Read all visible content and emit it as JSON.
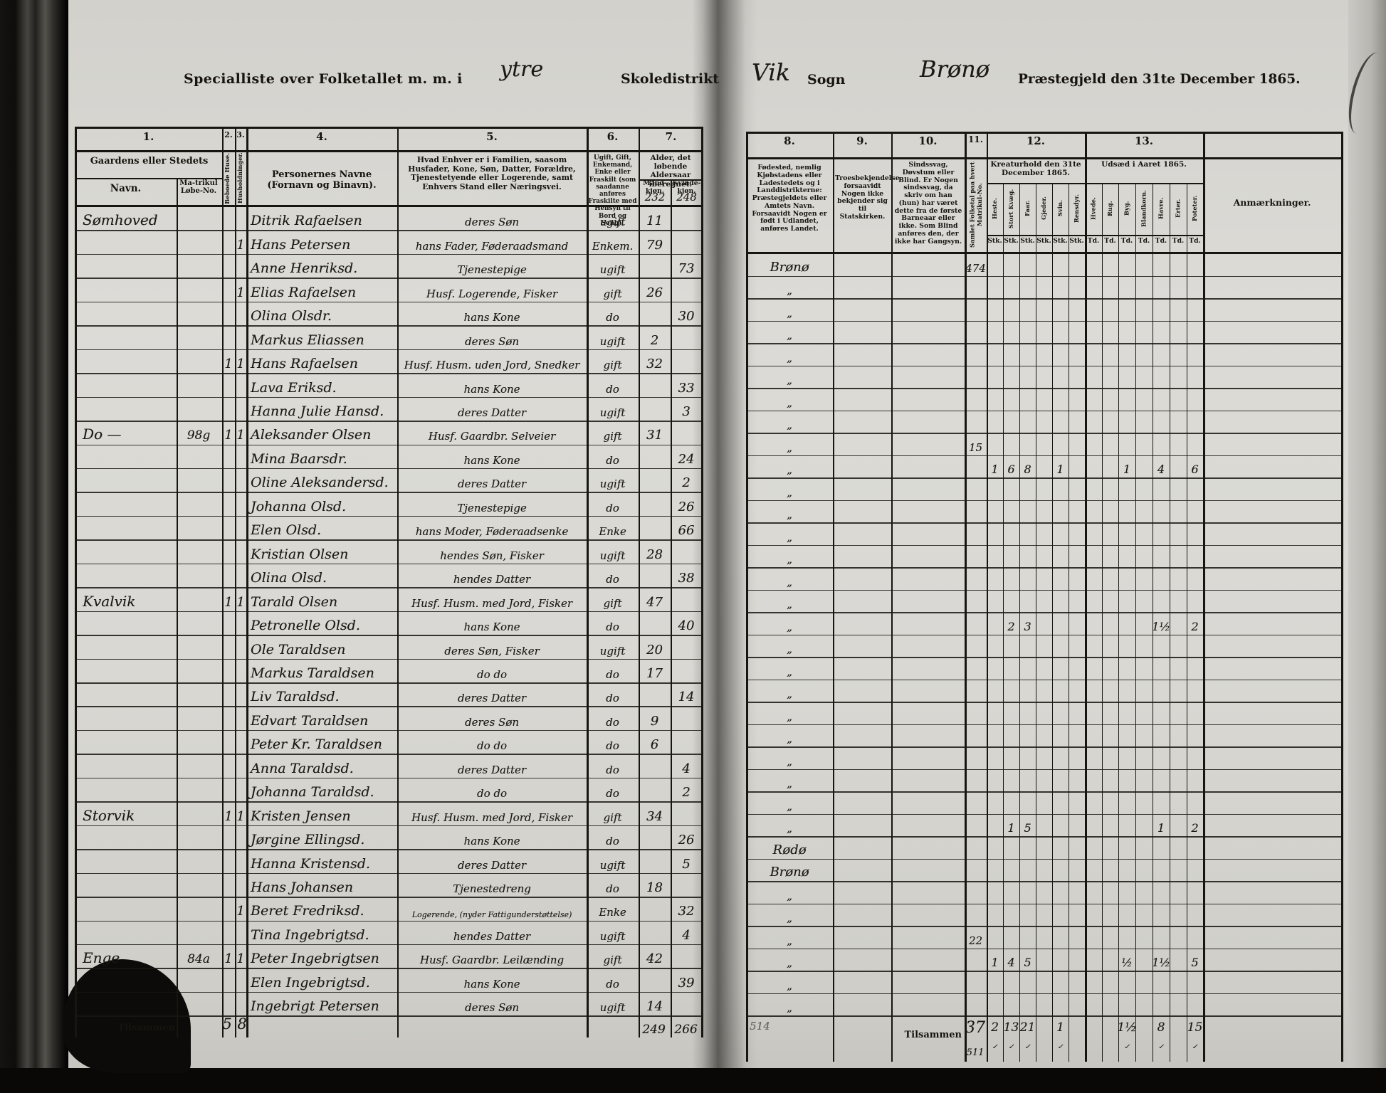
{
  "page_header": {
    "left_title_prefix": "Specialliste over Folketallet m. m. i",
    "district_handwritten": "ytre",
    "left_title_suffix": "Skoledistrikt",
    "parish_handwritten": "Vik",
    "sogn_label": "Sogn",
    "prestegjeld_handwritten": "Brønø",
    "right_title_suffix": "Præstegjeld den 31te December 1865."
  },
  "left_table": {
    "column_numbers": [
      "1.",
      "2.",
      "3.",
      "4.",
      "5.",
      "6.",
      "7."
    ],
    "headers": {
      "farm_group": "Gaardens eller Stedets",
      "farm_name": "Navn.",
      "matrikul": "Ma-trikul Løbe-No.",
      "inhabited_houses": "Beboede Huse.",
      "households": "Husholdninger.",
      "person_names": "Personernes Navne (Fornavn og Binavn).",
      "position": "Hvad Enhver er i Familien, saasom Husfader, Kone, Søn, Datter, Forældre, Tjenestetyende eller Logerende, samt Enhvers Stand eller Næringsvei.",
      "status": "Ugift, Gift, Enkemand, Enke eller Fraskilt (som saadanne anføres Fraskilte med Hensyn til Bord og Seng).",
      "age": "Alder, det løbende Aldersaar iberegnet.",
      "male": "Mand-kjøn.",
      "female": "Kvinde-kjøn.",
      "male_carry": "232",
      "female_carry": "248"
    },
    "footer": {
      "label": "Tilsammen",
      "houses_total": "5",
      "households_total": "8",
      "male_total": "249",
      "female_total": "266"
    }
  },
  "right_table": {
    "column_numbers": [
      "8.",
      "9.",
      "10.",
      "11.",
      "12.",
      "13."
    ],
    "headers": {
      "birthplace": "Fødested, nemlig Kjøbstadens eller Ladestedets og i Landdistrikterne: Præstegjeldets eller Amtets Navn. Forsaavidt Nogen er født i Udlandet, anføres Landet.",
      "faith": "Troesbekjendelse, forsaavidt Nogen ikke bekjender sig til Statskirken.",
      "disabilities": "Sindssvag, Døvstum eller Blind. Er Nogen sindssvag, da skriv om han (hun) har været dette fra de første Barneaar eller ikke. Som Blind anføres den, der ikke har Gangsyn.",
      "population": "Samlet Folketal paa hvert Matrikul-No.",
      "livestock_title": "Kreaturhold den 31te December 1865.",
      "livestock_cols": [
        "Heste.",
        "Stort Kvæg.",
        "Faar.",
        "Gjeder.",
        "Svin.",
        "Rensdyr."
      ],
      "livestock_unit": "Stk.",
      "sowing_title": "Udsæd i Aaret 1865.",
      "sowing_cols": [
        "Hvede.",
        "Rug.",
        "Byg.",
        "Blandkorn.",
        "Havre.",
        "Erter.",
        "Poteter."
      ],
      "sowing_unit": "Td.",
      "remarks": "Anmærkninger."
    },
    "footer": {
      "faint_number": "514",
      "label": "Tilsammen",
      "population_total": "37",
      "population_running": "511",
      "livestock_totals": [
        "2",
        "13",
        "21",
        "",
        "1",
        ""
      ],
      "sowing_totals": [
        "",
        "",
        "1½",
        "",
        "8",
        "",
        "15"
      ],
      "checkmark": "✓"
    }
  },
  "rows": [
    {
      "farm": "Sømhoved",
      "matrikul": "",
      "house": "",
      "household": "",
      "name": "Ditrik Rafaelsen",
      "position": "deres Søn",
      "status": "ugift",
      "male_age": "11",
      "female_age": "",
      "birthplace": "Brønø",
      "population": "474",
      "livestock": [
        "",
        "",
        "",
        "",
        "",
        ""
      ],
      "sowing": [
        "",
        "",
        "",
        "",
        "",
        "",
        ""
      ]
    },
    {
      "farm": "",
      "matrikul": "",
      "house": "",
      "household": "1",
      "name": "Hans Petersen",
      "position": "hans Fader, Føderaadsmand",
      "status": "Enkem.",
      "male_age": "79",
      "female_age": "",
      "birthplace": "„",
      "population": "",
      "livestock": [
        "",
        "",
        "",
        "",
        "",
        ""
      ],
      "sowing": [
        "",
        "",
        "",
        "",
        "",
        "",
        ""
      ]
    },
    {
      "farm": "",
      "matrikul": "",
      "house": "",
      "household": "",
      "name": "Anne Henriksd.",
      "position": "Tjenestepige",
      "status": "ugift",
      "male_age": "",
      "female_age": "73",
      "birthplace": "„",
      "population": "",
      "livestock": [
        "",
        "",
        "",
        "",
        "",
        ""
      ],
      "sowing": [
        "",
        "",
        "",
        "",
        "",
        "",
        ""
      ]
    },
    {
      "farm": "",
      "matrikul": "",
      "house": "",
      "household": "1",
      "name": "Elias Rafaelsen",
      "position": "Husf. Logerende, Fisker",
      "status": "gift",
      "male_age": "26",
      "female_age": "",
      "birthplace": "„",
      "population": "",
      "livestock": [
        "",
        "",
        "",
        "",
        "",
        ""
      ],
      "sowing": [
        "",
        "",
        "",
        "",
        "",
        "",
        ""
      ]
    },
    {
      "farm": "",
      "matrikul": "",
      "house": "",
      "household": "",
      "name": "Olina Olsdr.",
      "position": "hans Kone",
      "status": "do",
      "male_age": "",
      "female_age": "30",
      "birthplace": "„",
      "population": "",
      "livestock": [
        "",
        "",
        "",
        "",
        "",
        ""
      ],
      "sowing": [
        "",
        "",
        "",
        "",
        "",
        "",
        ""
      ]
    },
    {
      "farm": "",
      "matrikul": "",
      "house": "",
      "household": "",
      "name": "Markus Eliassen",
      "position": "deres Søn",
      "status": "ugift",
      "male_age": "2",
      "female_age": "",
      "birthplace": "„",
      "population": "",
      "livestock": [
        "",
        "",
        "",
        "",
        "",
        ""
      ],
      "sowing": [
        "",
        "",
        "",
        "",
        "",
        "",
        ""
      ]
    },
    {
      "farm": "",
      "matrikul": "",
      "house": "1",
      "household": "1",
      "name": "Hans Rafaelsen",
      "position": "Husf. Husm. uden Jord, Snedker",
      "status": "gift",
      "male_age": "32",
      "female_age": "",
      "birthplace": "„",
      "population": "",
      "livestock": [
        "",
        "",
        "",
        "",
        "",
        ""
      ],
      "sowing": [
        "",
        "",
        "",
        "",
        "",
        "",
        ""
      ]
    },
    {
      "farm": "",
      "matrikul": "",
      "house": "",
      "household": "",
      "name": "Lava Eriksd.",
      "position": "hans Kone",
      "status": "do",
      "male_age": "",
      "female_age": "33",
      "birthplace": "„",
      "population": "",
      "livestock": [
        "",
        "",
        "",
        "",
        "",
        ""
      ],
      "sowing": [
        "",
        "",
        "",
        "",
        "",
        "",
        ""
      ]
    },
    {
      "farm": "",
      "matrikul": "",
      "house": "",
      "household": "",
      "name": "Hanna Julie Hansd.",
      "position": "deres Datter",
      "status": "ugift",
      "male_age": "",
      "female_age": "3",
      "birthplace": "„",
      "population": "15",
      "livestock": [
        "",
        "",
        "",
        "",
        "",
        ""
      ],
      "sowing": [
        "",
        "",
        "",
        "",
        "",
        "",
        ""
      ]
    },
    {
      "farm": "Do —",
      "matrikul": "98g",
      "house": "1",
      "household": "1",
      "name": "Aleksander Olsen",
      "position": "Husf. Gaardbr. Selveier",
      "status": "gift",
      "male_age": "31",
      "female_age": "",
      "birthplace": "„",
      "population": "",
      "livestock": [
        "1",
        "6",
        "8",
        "",
        "1",
        ""
      ],
      "sowing": [
        "",
        "",
        "1",
        "",
        "4",
        "",
        "6"
      ]
    },
    {
      "farm": "",
      "matrikul": "",
      "house": "",
      "household": "",
      "name": "Mina Baarsdr.",
      "position": "hans Kone",
      "status": "do",
      "male_age": "",
      "female_age": "24",
      "birthplace": "„",
      "population": "",
      "livestock": [
        "",
        "",
        "",
        "",
        "",
        ""
      ],
      "sowing": [
        "",
        "",
        "",
        "",
        "",
        "",
        ""
      ]
    },
    {
      "farm": "",
      "matrikul": "",
      "house": "",
      "household": "",
      "name": "Oline Aleksandersd.",
      "position": "deres Datter",
      "status": "ugift",
      "male_age": "",
      "female_age": "2",
      "birthplace": "„",
      "population": "",
      "livestock": [
        "",
        "",
        "",
        "",
        "",
        ""
      ],
      "sowing": [
        "",
        "",
        "",
        "",
        "",
        "",
        ""
      ]
    },
    {
      "farm": "",
      "matrikul": "",
      "house": "",
      "household": "",
      "name": "Johanna Olsd.",
      "position": "Tjenestepige",
      "status": "do",
      "male_age": "",
      "female_age": "26",
      "birthplace": "„",
      "population": "",
      "livestock": [
        "",
        "",
        "",
        "",
        "",
        ""
      ],
      "sowing": [
        "",
        "",
        "",
        "",
        "",
        "",
        ""
      ]
    },
    {
      "farm": "",
      "matrikul": "",
      "house": "",
      "household": "",
      "name": "Elen Olsd.",
      "position": "hans Moder, Føderaadsenke",
      "status": "Enke",
      "male_age": "",
      "female_age": "66",
      "birthplace": "„",
      "population": "",
      "livestock": [
        "",
        "",
        "",
        "",
        "",
        ""
      ],
      "sowing": [
        "",
        "",
        "",
        "",
        "",
        "",
        ""
      ]
    },
    {
      "farm": "",
      "matrikul": "",
      "house": "",
      "household": "",
      "name": "Kristian Olsen",
      "position": "hendes Søn, Fisker",
      "status": "ugift",
      "male_age": "28",
      "female_age": "",
      "birthplace": "„",
      "population": "",
      "livestock": [
        "",
        "",
        "",
        "",
        "",
        ""
      ],
      "sowing": [
        "",
        "",
        "",
        "",
        "",
        "",
        ""
      ]
    },
    {
      "farm": "",
      "matrikul": "",
      "house": "",
      "household": "",
      "name": "Olina Olsd.",
      "position": "hendes Datter",
      "status": "do",
      "male_age": "",
      "female_age": "38",
      "birthplace": "„",
      "population": "",
      "livestock": [
        "",
        "",
        "",
        "",
        "",
        ""
      ],
      "sowing": [
        "",
        "",
        "",
        "",
        "",
        "",
        ""
      ]
    },
    {
      "farm": "Kvalvik",
      "matrikul": "",
      "house": "1",
      "household": "1",
      "name": "Tarald Olsen",
      "position": "Husf. Husm. med Jord, Fisker",
      "status": "gift",
      "male_age": "47",
      "female_age": "",
      "birthplace": "„",
      "population": "",
      "livestock": [
        "",
        "2",
        "3",
        "",
        "",
        ""
      ],
      "sowing": [
        "",
        "",
        "",
        "",
        "1½",
        "",
        "2"
      ]
    },
    {
      "farm": "",
      "matrikul": "",
      "house": "",
      "household": "",
      "name": "Petronelle Olsd.",
      "position": "hans Kone",
      "status": "do",
      "male_age": "",
      "female_age": "40",
      "birthplace": "„",
      "population": "",
      "livestock": [
        "",
        "",
        "",
        "",
        "",
        ""
      ],
      "sowing": [
        "",
        "",
        "",
        "",
        "",
        "",
        ""
      ]
    },
    {
      "farm": "",
      "matrikul": "",
      "house": "",
      "household": "",
      "name": "Ole Taraldsen",
      "position": "deres Søn, Fisker",
      "status": "ugift",
      "male_age": "20",
      "female_age": "",
      "birthplace": "„",
      "population": "",
      "livestock": [
        "",
        "",
        "",
        "",
        "",
        ""
      ],
      "sowing": [
        "",
        "",
        "",
        "",
        "",
        "",
        ""
      ]
    },
    {
      "farm": "",
      "matrikul": "",
      "house": "",
      "household": "",
      "name": "Markus Taraldsen",
      "position": "do do",
      "status": "do",
      "male_age": "17",
      "female_age": "",
      "birthplace": "„",
      "population": "",
      "livestock": [
        "",
        "",
        "",
        "",
        "",
        ""
      ],
      "sowing": [
        "",
        "",
        "",
        "",
        "",
        "",
        ""
      ]
    },
    {
      "farm": "",
      "matrikul": "",
      "house": "",
      "household": "",
      "name": "Liv Taraldsd.",
      "position": "deres Datter",
      "status": "do",
      "male_age": "",
      "female_age": "14",
      "birthplace": "„",
      "population": "",
      "livestock": [
        "",
        "",
        "",
        "",
        "",
        ""
      ],
      "sowing": [
        "",
        "",
        "",
        "",
        "",
        "",
        ""
      ]
    },
    {
      "farm": "",
      "matrikul": "",
      "house": "",
      "household": "",
      "name": "Edvart Taraldsen",
      "position": "deres Søn",
      "status": "do",
      "male_age": "9",
      "female_age": "",
      "birthplace": "„",
      "population": "",
      "livestock": [
        "",
        "",
        "",
        "",
        "",
        ""
      ],
      "sowing": [
        "",
        "",
        "",
        "",
        "",
        "",
        ""
      ]
    },
    {
      "farm": "",
      "matrikul": "",
      "house": "",
      "household": "",
      "name": "Peter Kr. Taraldsen",
      "position": "do do",
      "status": "do",
      "male_age": "6",
      "female_age": "",
      "birthplace": "„",
      "population": "",
      "livestock": [
        "",
        "",
        "",
        "",
        "",
        ""
      ],
      "sowing": [
        "",
        "",
        "",
        "",
        "",
        "",
        ""
      ]
    },
    {
      "farm": "",
      "matrikul": "",
      "house": "",
      "household": "",
      "name": "Anna Taraldsd.",
      "position": "deres Datter",
      "status": "do",
      "male_age": "",
      "female_age": "4",
      "birthplace": "„",
      "population": "",
      "livestock": [
        "",
        "",
        "",
        "",
        "",
        ""
      ],
      "sowing": [
        "",
        "",
        "",
        "",
        "",
        "",
        ""
      ]
    },
    {
      "farm": "",
      "matrikul": "",
      "house": "",
      "household": "",
      "name": "Johanna Taraldsd.",
      "position": "do do",
      "status": "do",
      "male_age": "",
      "female_age": "2",
      "birthplace": "„",
      "population": "",
      "livestock": [
        "",
        "",
        "",
        "",
        "",
        ""
      ],
      "sowing": [
        "",
        "",
        "",
        "",
        "",
        "",
        ""
      ]
    },
    {
      "farm": "Storvik",
      "matrikul": "",
      "house": "1",
      "household": "1",
      "name": "Kristen Jensen",
      "position": "Husf. Husm. med Jord, Fisker",
      "status": "gift",
      "male_age": "34",
      "female_age": "",
      "birthplace": "„",
      "population": "",
      "livestock": [
        "",
        "1",
        "5",
        "",
        "",
        ""
      ],
      "sowing": [
        "",
        "",
        "",
        "",
        "1",
        "",
        "2"
      ]
    },
    {
      "farm": "",
      "matrikul": "",
      "house": "",
      "household": "",
      "name": "Jørgine Ellingsd.",
      "position": "hans Kone",
      "status": "do",
      "male_age": "",
      "female_age": "26",
      "birthplace": "Rødø",
      "population": "",
      "livestock": [
        "",
        "",
        "",
        "",
        "",
        ""
      ],
      "sowing": [
        "",
        "",
        "",
        "",
        "",
        "",
        ""
      ]
    },
    {
      "farm": "",
      "matrikul": "",
      "house": "",
      "household": "",
      "name": "Hanna Kristensd.",
      "position": "deres Datter",
      "status": "ugift",
      "male_age": "",
      "female_age": "5",
      "birthplace": "Brønø",
      "population": "",
      "livestock": [
        "",
        "",
        "",
        "",
        "",
        ""
      ],
      "sowing": [
        "",
        "",
        "",
        "",
        "",
        "",
        ""
      ]
    },
    {
      "farm": "",
      "matrikul": "",
      "house": "",
      "household": "",
      "name": "Hans Johansen",
      "position": "Tjenestedreng",
      "status": "do",
      "male_age": "18",
      "female_age": "",
      "birthplace": "„",
      "population": "",
      "livestock": [
        "",
        "",
        "",
        "",
        "",
        ""
      ],
      "sowing": [
        "",
        "",
        "",
        "",
        "",
        "",
        ""
      ]
    },
    {
      "farm": "",
      "matrikul": "",
      "house": "",
      "household": "1",
      "name": "Beret Fredriksd.",
      "position": "Logerende, (nyder Fattigunderstøttelse)",
      "status": "Enke",
      "male_age": "",
      "female_age": "32",
      "birthplace": "„",
      "population": "",
      "livestock": [
        "",
        "",
        "",
        "",
        "",
        ""
      ],
      "sowing": [
        "",
        "",
        "",
        "",
        "",
        "",
        ""
      ]
    },
    {
      "farm": "",
      "matrikul": "",
      "house": "",
      "household": "",
      "name": "Tina Ingebrigtsd.",
      "position": "hendes Datter",
      "status": "ugift",
      "male_age": "",
      "female_age": "4",
      "birthplace": "„",
      "population": "22",
      "livestock": [
        "",
        "",
        "",
        "",
        "",
        ""
      ],
      "sowing": [
        "",
        "",
        "",
        "",
        "",
        "",
        ""
      ]
    },
    {
      "farm": "Enge",
      "matrikul": "84a",
      "house": "1",
      "household": "1",
      "name": "Peter Ingebrigtsen",
      "position": "Husf. Gaardbr. Leilænding",
      "status": "gift",
      "male_age": "42",
      "female_age": "",
      "birthplace": "„",
      "population": "",
      "livestock": [
        "1",
        "4",
        "5",
        "",
        "",
        ""
      ],
      "sowing": [
        "",
        "",
        "½",
        "",
        "1½",
        "",
        "5"
      ]
    },
    {
      "farm": "",
      "matrikul": "",
      "house": "",
      "household": "",
      "name": "Elen Ingebrigtsd.",
      "position": "hans Kone",
      "status": "do",
      "male_age": "",
      "female_age": "39",
      "birthplace": "„",
      "population": "",
      "livestock": [
        "",
        "",
        "",
        "",
        "",
        ""
      ],
      "sowing": [
        "",
        "",
        "",
        "",
        "",
        "",
        ""
      ]
    },
    {
      "farm": "",
      "matrikul": "",
      "house": "",
      "household": "",
      "name": "Ingebrigt Petersen",
      "position": "deres Søn",
      "status": "ugift",
      "male_age": "14",
      "female_age": "",
      "birthplace": "„",
      "population": "",
      "livestock": [
        "",
        "",
        "",
        "",
        "",
        ""
      ],
      "sowing": [
        "",
        "",
        "",
        "",
        "",
        "",
        ""
      ]
    }
  ]
}
